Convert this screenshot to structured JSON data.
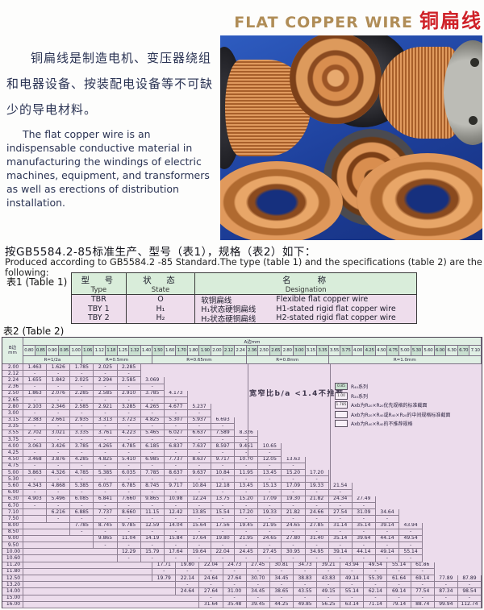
{
  "colors": {
    "title_gold": "#b08d57",
    "title_red": "#cf2128",
    "text_navy": "#2a3353",
    "photo_blue": "#1d3f9a",
    "copper": "#c47a3c",
    "table_green": "#d9edda",
    "table_pink": "#ecdcec"
  },
  "header": {
    "title_en": "FLAT COPPER WIRE",
    "title_cn": "铜扁线"
  },
  "intro": {
    "cn": "铜扁线是制造电机、变压器绕组和电器设备、按装配电设备等不可缺少的导电材料。",
    "en": "The flat copper wire is an indispensable conductive material in manufacturing the windings of electric machines, equipment, and transformers as well as erections of distribution installation."
  },
  "standard_line": {
    "cn": "按GB5584.2-85标准生产、型号（表1），规格（表2）如下：",
    "en": "Produced according to GB5584.2 -85 Standard.The type (table 1) and the specifications (table 2) are the following:"
  },
  "table1": {
    "label": "表1 (Table 1)",
    "headers": {
      "type_cn": "型　号",
      "type_en": "Type",
      "state_cn": "状　态",
      "state_en": "State",
      "name_cn": "名　　称",
      "name_en": "Designation"
    },
    "rows": [
      {
        "type": "TBR",
        "state": "O",
        "name_cn": "软铜扁线",
        "name_en": "Flexible flat copper wire"
      },
      {
        "type": "TBY 1",
        "state": "H₁",
        "name_cn": "H₁状态硬铜扁线",
        "name_en": "H1-stated rigid flat copper wire"
      },
      {
        "type": "TBY 2",
        "state": "H₂",
        "name_cn": "H₂状态硬铜扁线",
        "name_en": "H2-stated rigid flat copper wire"
      }
    ]
  },
  "table2": {
    "label": "表2 (Table 2)",
    "a_header": "A边mm",
    "corner_cn": "B边",
    "corner_unit": "mm",
    "dash_char": "-",
    "note": "宽窄比b/a <1.4不推荐",
    "col_sizes": [
      "0.80",
      "0.85",
      "0.90",
      "0.95",
      "1.00",
      "1.06",
      "1.12",
      "1.18",
      "1.25",
      "1.32",
      "1.40",
      "1.50",
      "1.60",
      "1.70",
      "1.80",
      "1.90",
      "2.00",
      "2.12",
      "2.24",
      "2.36",
      "2.50",
      "2.65",
      "2.80",
      "3.00",
      "3.15",
      "3.35",
      "3.55",
      "3.75",
      "4.00",
      "4.25",
      "4.50",
      "4.75",
      "5.00",
      "5.30",
      "5.60",
      "6.00",
      "6.30",
      "6.70",
      "7.10"
    ],
    "groups": [
      {
        "label": "R=1/2a",
        "span": 5
      },
      {
        "label": "R=0.5mm",
        "span": 6
      },
      {
        "label": "R=0.65mm",
        "span": 8
      },
      {
        "label": "R=0.8mm",
        "span": 7
      },
      {
        "label": "R=1.0mm",
        "span": 13
      }
    ],
    "legend": [
      {
        "key": "0.85",
        "shaded": true,
        "label": "R₄₀系列"
      },
      {
        "key": "1.00",
        "shaded": false,
        "label": "R₂₀系列"
      },
      {
        "key": "1.785",
        "shaded": false,
        "label": "Axb为R₂₀×R₂₀优先规格的标准截面"
      },
      {
        "key": "",
        "shaded": false,
        "label": "Axb为R₂₀×R₄₀或R₄₀×R₂₀的中间规格标准截面"
      },
      {
        "key": "",
        "shaded": false,
        "label": "Axb为R₄₀×R₄₀的不推荐规格"
      }
    ],
    "rows": [
      {
        "b": "2.00",
        "start": 0,
        "values": [
          "1.463",
          "1.626",
          "1.785",
          "2.025",
          "2.285"
        ]
      },
      {
        "b": "2.12",
        "start": 0,
        "dash": 5
      },
      {
        "b": "2.24",
        "start": 0,
        "values": [
          "1.655",
          "1.842",
          "2.025",
          "2.294",
          "2.585",
          "3.069"
        ]
      },
      {
        "b": "2.36",
        "start": 0,
        "dash": 6
      },
      {
        "b": "2.50",
        "start": 0,
        "values": [
          "1.863",
          "2.076",
          "2.285",
          "2.585",
          "2.910",
          "3.785",
          "4.173"
        ]
      },
      {
        "b": "2.65",
        "start": 0,
        "dash": 7
      },
      {
        "b": "2.80",
        "start": 0,
        "values": [
          "2.103",
          "2.346",
          "2.585",
          "2.921",
          "3.285",
          "4.265",
          "4.677",
          "5.237"
        ]
      },
      {
        "b": "3.00",
        "start": 0,
        "dash": 8
      },
      {
        "b": "3.15",
        "start": 0,
        "values": [
          "2.383",
          "2.661",
          "2.935",
          "3.313",
          "3.723",
          "4.825",
          "5.307",
          "5.937",
          "6.693"
        ]
      },
      {
        "b": "3.35",
        "start": 0,
        "dash": 9
      },
      {
        "b": "3.55",
        "start": 0,
        "values": [
          "2.702",
          "3.021",
          "3.335",
          "3.761",
          "4.223",
          "5.465",
          "6.027",
          "6.637",
          "7.589",
          "8.326"
        ]
      },
      {
        "b": "3.75",
        "start": 0,
        "dash": 10
      },
      {
        "b": "4.00",
        "start": 0,
        "values": [
          "3.063",
          "3.426",
          "3.785",
          "4.265",
          "4.785",
          "6.185",
          "6.837",
          "7.637",
          "8.597",
          "9.451",
          "10.65"
        ]
      },
      {
        "b": "4.25",
        "start": 0,
        "dash": 11
      },
      {
        "b": "4.50",
        "start": 0,
        "values": [
          "3.468",
          "3.876",
          "4.285",
          "4.825",
          "5.410",
          "6.985",
          "7.737",
          "8.637",
          "9.717",
          "10.70",
          "12.05",
          "13.63"
        ]
      },
      {
        "b": "4.75",
        "start": 0,
        "dash": 12
      },
      {
        "b": "5.00",
        "start": 0,
        "values": [
          "3.863",
          "4.326",
          "4.785",
          "5.385",
          "6.035",
          "7.785",
          "8.637",
          "9.637",
          "10.84",
          "11.95",
          "13.45",
          "15.20",
          "17.20"
        ]
      },
      {
        "b": "5.30",
        "start": 0,
        "dash": 13
      },
      {
        "b": "5.60",
        "start": 0,
        "values": [
          "4.343",
          "4.868",
          "5.385",
          "6.057",
          "6.785",
          "8.745",
          "9.717",
          "10.84",
          "12.18",
          "13.45",
          "15.13",
          "17.09",
          "19.33",
          "21.54"
        ]
      },
      {
        "b": "6.00",
        "start": 0,
        "dash": 14
      },
      {
        "b": "6.30",
        "start": 0,
        "values": [
          "4.903",
          "5.496",
          "6.085",
          "6.841",
          "7.660",
          "9.865",
          "10.98",
          "12.24",
          "13.75",
          "15.20",
          "17.09",
          "19.30",
          "21.82",
          "24.34",
          "27.49"
        ]
      },
      {
        "b": "6.70",
        "start": 0,
        "dash": 15
      },
      {
        "b": "7.10",
        "start": 2,
        "values": [
          "6.216",
          "6.885",
          "7.737",
          "8.660",
          "11.15",
          "12.42",
          "13.85",
          "15.54",
          "17.20",
          "19.33",
          "21.82",
          "24.66",
          "27.54",
          "31.09",
          "34.64"
        ]
      },
      {
        "b": "7.50",
        "start": 2,
        "dash": 15
      },
      {
        "b": "8.00",
        "start": 4,
        "values": [
          "7.785",
          "8.745",
          "9.785",
          "12.59",
          "14.04",
          "15.64",
          "17.56",
          "19.45",
          "21.95",
          "24.65",
          "27.85",
          "31.14",
          "35.14",
          "39.14",
          "43.94"
        ]
      },
      {
        "b": "8.50",
        "start": 4,
        "dash": 15
      },
      {
        "b": "9.00",
        "start": 6,
        "values": [
          "9.865",
          "11.04",
          "14.19",
          "15.84",
          "17.64",
          "19.80",
          "21.95",
          "24.65",
          "27.80",
          "31.40",
          "35.14",
          "39.64",
          "44.14",
          "49.54"
        ]
      },
      {
        "b": "9.50",
        "start": 6,
        "dash": 14
      },
      {
        "b": "10.00",
        "start": 8,
        "values": [
          "12.29",
          "15.79",
          "17.64",
          "19.64",
          "22.04",
          "24.45",
          "27.45",
          "30.95",
          "34.95",
          "39.14",
          "44.14",
          "49.14",
          "55.14"
        ]
      },
      {
        "b": "10.60",
        "start": 8,
        "dash": 13
      },
      {
        "b": "11.20",
        "start": 11,
        "values": [
          "17.71",
          "19.80",
          "22.04",
          "24.73",
          "27.45",
          "30.81",
          "34.73",
          "39.21",
          "43.94",
          "49.54",
          "55.14",
          "61.86"
        ]
      },
      {
        "b": "11.80",
        "start": 11,
        "dash": 12
      },
      {
        "b": "12.50",
        "start": 11,
        "values": [
          "19.79",
          "22.14",
          "24.64",
          "27.64",
          "30.70",
          "34.45",
          "38.83",
          "43.83",
          "49.14",
          "55.39",
          "61.64",
          "69.14",
          "77.89",
          "87.89"
        ]
      },
      {
        "b": "13.20",
        "start": 13,
        "dash": 13
      },
      {
        "b": "14.00",
        "start": 13,
        "values": [
          "24.64",
          "27.64",
          "31.00",
          "34.45",
          "38.65",
          "43.55",
          "49.15",
          "55.14",
          "62.14",
          "69.14",
          "77.54",
          "87.34",
          "98.54"
        ]
      },
      {
        "b": "15.00",
        "start": 15,
        "dash": 12
      },
      {
        "b": "16.00",
        "start": 15,
        "values": [
          "31.64",
          "35.48",
          "39.45",
          "44.25",
          "49.85",
          "56.25",
          "63.14",
          "71.14",
          "79.14",
          "88.74",
          "99.94",
          "112.74"
        ]
      }
    ]
  }
}
